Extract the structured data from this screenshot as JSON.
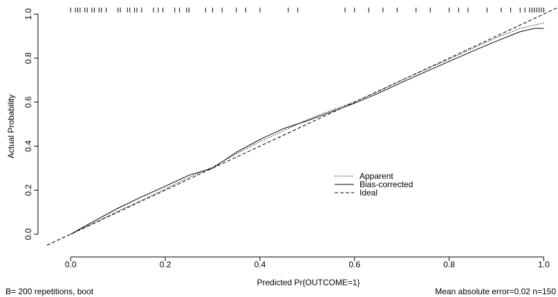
{
  "chart_data": {
    "type": "line",
    "xlabel": "Predicted Pr{OUTCOME=1}",
    "ylabel": "Actual Probability",
    "xlim": [
      -0.05,
      1.03
    ],
    "ylim": [
      -0.05,
      1.02
    ],
    "x_ticks": [
      0.0,
      0.2,
      0.4,
      0.6,
      0.8,
      1.0
    ],
    "x_tick_labels": [
      "0.0",
      "0.2",
      "0.4",
      "0.6",
      "0.8",
      "1.0"
    ],
    "y_ticks": [
      0.0,
      0.2,
      0.4,
      0.6,
      0.8,
      1.0
    ],
    "y_tick_labels": [
      "0.0",
      "0.2",
      "0.4",
      "0.6",
      "0.8",
      "1.0"
    ],
    "grid": false,
    "legend_position": "lower-right",
    "footer_left": "B= 200 repetitions, boot",
    "footer_right": "Mean absolute error=0.02 n=150",
    "series": [
      {
        "name": "Apparent",
        "line_style": "dotted",
        "x": [
          0.0,
          0.05,
          0.1,
          0.15,
          0.2,
          0.25,
          0.3,
          0.35,
          0.4,
          0.45,
          0.5,
          0.55,
          0.6,
          0.65,
          0.7,
          0.75,
          0.8,
          0.85,
          0.9,
          0.95,
          1.0
        ],
        "y": [
          0.0,
          0.052,
          0.104,
          0.155,
          0.205,
          0.258,
          0.305,
          0.365,
          0.42,
          0.47,
          0.52,
          0.562,
          0.602,
          0.648,
          0.7,
          0.748,
          0.795,
          0.845,
          0.893,
          0.935,
          0.96
        ]
      },
      {
        "name": "Bias-corrected",
        "line_style": "solid",
        "x": [
          0.0,
          0.05,
          0.1,
          0.15,
          0.2,
          0.25,
          0.3,
          0.35,
          0.4,
          0.45,
          0.5,
          0.55,
          0.6,
          0.65,
          0.7,
          0.75,
          0.8,
          0.85,
          0.9,
          0.95,
          0.98,
          1.0
        ],
        "y": [
          0.0,
          0.06,
          0.118,
          0.17,
          0.218,
          0.268,
          0.3,
          0.372,
          0.43,
          0.48,
          0.515,
          0.555,
          0.595,
          0.64,
          0.69,
          0.738,
          0.785,
          0.832,
          0.877,
          0.92,
          0.935,
          0.935
        ]
      },
      {
        "name": "Ideal",
        "line_style": "dashed",
        "x": [
          -0.05,
          1.03
        ],
        "y": [
          -0.05,
          1.03
        ]
      }
    ],
    "rug_x": [
      0.0,
      0.01,
      0.015,
      0.02,
      0.03,
      0.035,
      0.045,
      0.05,
      0.06,
      0.065,
      0.075,
      0.1,
      0.105,
      0.12,
      0.125,
      0.135,
      0.14,
      0.15,
      0.175,
      0.185,
      0.195,
      0.22,
      0.23,
      0.245,
      0.25,
      0.285,
      0.3,
      0.32,
      0.35,
      0.37,
      0.4,
      0.46,
      0.48,
      0.58,
      0.6,
      0.63,
      0.66,
      0.69,
      0.73,
      0.76,
      0.8,
      0.82,
      0.84,
      0.88,
      0.91,
      0.93,
      0.95,
      0.96,
      0.97,
      0.975,
      0.98,
      0.985,
      0.99,
      0.995,
      1.0
    ]
  }
}
